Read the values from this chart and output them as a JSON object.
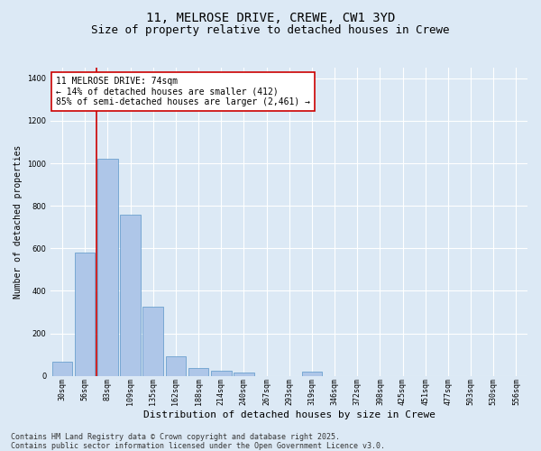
{
  "title1": "11, MELROSE DRIVE, CREWE, CW1 3YD",
  "title2": "Size of property relative to detached houses in Crewe",
  "xlabel": "Distribution of detached houses by size in Crewe",
  "ylabel": "Number of detached properties",
  "categories": [
    "30sqm",
    "56sqm",
    "83sqm",
    "109sqm",
    "135sqm",
    "162sqm",
    "188sqm",
    "214sqm",
    "240sqm",
    "267sqm",
    "293sqm",
    "319sqm",
    "346sqm",
    "372sqm",
    "398sqm",
    "425sqm",
    "451sqm",
    "477sqm",
    "503sqm",
    "530sqm",
    "556sqm"
  ],
  "values": [
    65,
    580,
    1020,
    760,
    325,
    92,
    38,
    25,
    14,
    0,
    0,
    18,
    0,
    0,
    0,
    0,
    0,
    0,
    0,
    0,
    0
  ],
  "bar_color": "#aec6e8",
  "bar_edge_color": "#5a96c8",
  "background_color": "#dce9f5",
  "grid_color": "#ffffff",
  "vline_color": "#cc0000",
  "annotation_text": "11 MELROSE DRIVE: 74sqm\n← 14% of detached houses are smaller (412)\n85% of semi-detached houses are larger (2,461) →",
  "annotation_box_color": "#ffffff",
  "annotation_box_edge_color": "#cc0000",
  "footnote1": "Contains HM Land Registry data © Crown copyright and database right 2025.",
  "footnote2": "Contains public sector information licensed under the Open Government Licence v3.0.",
  "ylim": [
    0,
    1450
  ],
  "title1_fontsize": 10,
  "title2_fontsize": 9,
  "annotation_fontsize": 7,
  "footnote_fontsize": 6,
  "tick_fontsize": 6,
  "ylabel_fontsize": 7,
  "xlabel_fontsize": 8
}
